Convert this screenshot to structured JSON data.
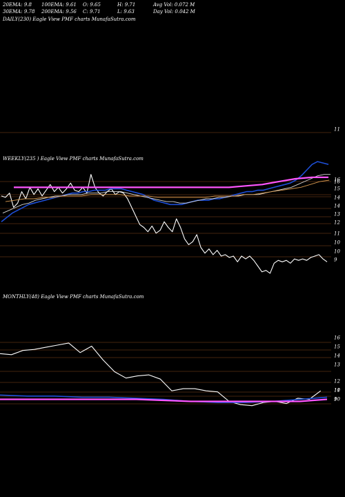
{
  "stats": {
    "ema20": "20EMA: 9.8",
    "ema30": "30EMA: 9.78",
    "ema100": "100EMA: 9.61",
    "ema200": "200EMA: 9.56",
    "open": "O: 9.65",
    "close": "C: 9.71",
    "high": "H: 9.71",
    "low": "L: 9.63",
    "avg_vol": "Avg Vol: 0.072  M",
    "day_vol": "Day Vol: 0.042  M"
  },
  "daily_caption": "DAILY(230) Eagle  View  PMF charts MunafaSutra.com",
  "weekly_caption": "WEEKLY(235                                ) Eagle  View  PMF charts MunafaSutra.com",
  "monthly_caption": "MONTHLY(48) Eagle  View  PMF charts MunafaSutra.com",
  "colors": {
    "price": "#ffffff",
    "ema_fast": "#1e4fd8",
    "ema_slow": "#ff55ff",
    "ema_mid": "#d8d8d8",
    "ema_long": "#d89a50",
    "grid": "#8a4a1c"
  },
  "chart_data": [
    {
      "type": "line",
      "title": "DAILY(230)",
      "y_ticks": [
        "11"
      ],
      "series": []
    },
    {
      "type": "line",
      "title": "WEEKLY(235)",
      "y_ticks": [
        "16",
        "16",
        "15",
        "14",
        "14",
        "13",
        "12",
        "11",
        "10",
        "10",
        "9"
      ],
      "series": [
        {
          "values": [
            14.0,
            13.9,
            14.2,
            13.2,
            13.5,
            14.3,
            13.8,
            14.6,
            14.1,
            14.5,
            14.0,
            14.4,
            14.8,
            14.3,
            14.6,
            14.2,
            14.5,
            14.9,
            14.4,
            14.3,
            14.6,
            14.2,
            15.5,
            14.6,
            14.2,
            14.0,
            14.3,
            14.5,
            14.1,
            14.3,
            14.2,
            13.8,
            13.2,
            12.6,
            12.0,
            11.8,
            11.5,
            11.9,
            11.4,
            11.6,
            12.2,
            11.8,
            11.5,
            12.4,
            11.8,
            11.0,
            10.6,
            10.8,
            11.3,
            10.4,
            10.0,
            10.3,
            9.9,
            10.2,
            9.8,
            9.9,
            9.7,
            9.8,
            9.4,
            9.8,
            9.6,
            9.8,
            9.5,
            9.1,
            8.7,
            8.8,
            8.6,
            9.3,
            9.5,
            9.4,
            9.5,
            9.3,
            9.6,
            9.5,
            9.6,
            9.5,
            9.7,
            9.8,
            9.9,
            9.6,
            9.4
          ]
        },
        {
          "values": [
            12.2,
            12.5,
            12.8,
            13.0,
            13.2,
            13.4,
            13.5,
            13.6,
            13.7,
            13.8,
            13.9,
            14.0,
            14.1,
            14.2,
            14.2,
            14.3,
            14.3,
            14.4,
            14.4,
            14.4,
            14.5,
            14.5,
            14.5,
            14.4,
            14.3,
            14.2,
            14.1,
            13.9,
            13.7,
            13.6,
            13.5,
            13.4,
            13.4,
            13.4,
            13.5,
            13.6,
            13.7,
            13.7,
            13.7,
            13.8,
            13.8,
            13.9,
            14.0,
            14.1,
            14.2,
            14.3,
            14.3,
            14.4,
            14.4,
            14.5,
            14.6,
            14.7,
            14.8,
            14.9,
            15.1,
            15.4,
            15.8,
            16.2,
            16.4,
            16.3,
            16.2
          ]
        },
        {
          "values": [
            12.8,
            13.0,
            13.2,
            13.4,
            13.5,
            13.7,
            13.8,
            13.9,
            14.0,
            14.0,
            14.1,
            14.1,
            14.1,
            14.2,
            14.2,
            14.2,
            14.3,
            14.3,
            14.3,
            14.2,
            14.1,
            14.0,
            13.9,
            13.8,
            13.7,
            13.6,
            13.6,
            13.5,
            13.5,
            13.6,
            13.7,
            13.8,
            13.8,
            13.9,
            13.9,
            14.0,
            14.0,
            14.1,
            14.1,
            14.1,
            14.2,
            14.3,
            14.4,
            14.5,
            14.6,
            14.8,
            15.0,
            15.2,
            15.4,
            15.5,
            15.5
          ]
        },
        {
          "values": [
            13.6,
            13.7,
            13.8,
            13.8,
            13.9,
            13.9,
            14.0,
            14.0,
            14.0,
            14.1,
            14.1,
            14.1,
            14.1,
            14.0,
            14.0,
            14.0,
            13.9,
            13.9,
            13.9,
            13.9,
            13.9,
            13.9,
            14.0,
            14.0,
            14.0,
            14.1,
            14.1,
            14.2,
            14.3,
            14.4,
            14.5,
            14.6,
            14.8,
            15.0,
            15.1
          ]
        },
        {
          "values": [
            14.6,
            14.6,
            14.6,
            14.6,
            14.6,
            14.6,
            14.6,
            14.6,
            14.6,
            14.6,
            14.6,
            14.6,
            14.6,
            14.6,
            14.7,
            14.8,
            15.0,
            15.2,
            15.3,
            15.3
          ]
        }
      ]
    },
    {
      "type": "line",
      "title": "MONTHLY(48)",
      "y_ticks": [
        "16",
        "15",
        "14",
        "13",
        "12",
        "11",
        "10",
        "10",
        "9"
      ],
      "series": [
        {
          "values": [
            14.1,
            14.0,
            14.4,
            14.5,
            14.7,
            14.9,
            15.1,
            14.2,
            14.8,
            13.5,
            12.4,
            11.8,
            12.0,
            12.1,
            11.7,
            10.6,
            10.8,
            10.8,
            10.6,
            10.5,
            9.6,
            9.3,
            9.2,
            9.5,
            9.6,
            9.4,
            9.9,
            9.8,
            10.6
          ]
        },
        {
          "values": [
            10.2,
            10.1,
            10.1,
            10.0,
            10.0,
            9.9,
            9.8,
            9.6,
            9.5,
            9.5,
            9.6,
            9.8,
            10.0
          ]
        },
        {
          "values": [
            9.8,
            9.8,
            9.8,
            9.8,
            9.8,
            9.8,
            9.7,
            9.6,
            9.6,
            9.6,
            9.6,
            9.6,
            9.8
          ]
        }
      ]
    }
  ]
}
